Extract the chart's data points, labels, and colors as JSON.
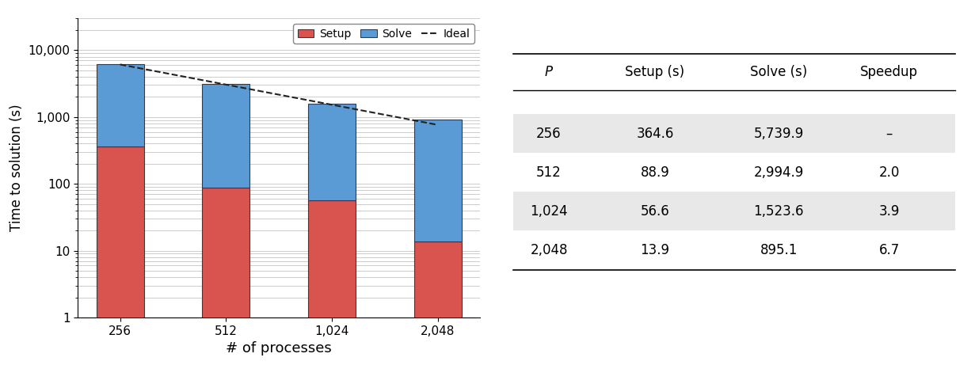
{
  "processes": [
    256,
    512,
    1024,
    2048
  ],
  "setup_times": [
    364.6,
    88.9,
    56.6,
    13.9
  ],
  "solve_times": [
    5739.9,
    2994.9,
    1523.6,
    895.1
  ],
  "speedups": [
    null,
    2.0,
    3.9,
    6.7
  ],
  "xtick_labels": [
    "256",
    "512",
    "1,024",
    "2,048"
  ],
  "bar_color_setup": "#d9534f",
  "bar_color_solve": "#5b9bd5",
  "bar_edgecolor": "#3a3a3a",
  "ideal_color": "#222222",
  "ylabel": "Time to solution (s)",
  "xlabel": "# of processes",
  "ylim_min": 1.0,
  "ylim_max": 30000,
  "table_headers": [
    "P",
    "Setup (s)",
    "Solve (s)",
    "Speedup"
  ],
  "table_rows": [
    [
      "256",
      "364.6",
      "5,739.9",
      "–"
    ],
    [
      "512",
      "88.9",
      "2,994.9",
      "2.0"
    ],
    [
      "1,024",
      "56.6",
      "1,523.6",
      "3.9"
    ],
    [
      "2,048",
      "13.9",
      "895.1",
      "6.7"
    ]
  ],
  "row_bg_colors": [
    "#e8e8e8",
    "#ffffff",
    "#e8e8e8",
    "#ffffff"
  ]
}
